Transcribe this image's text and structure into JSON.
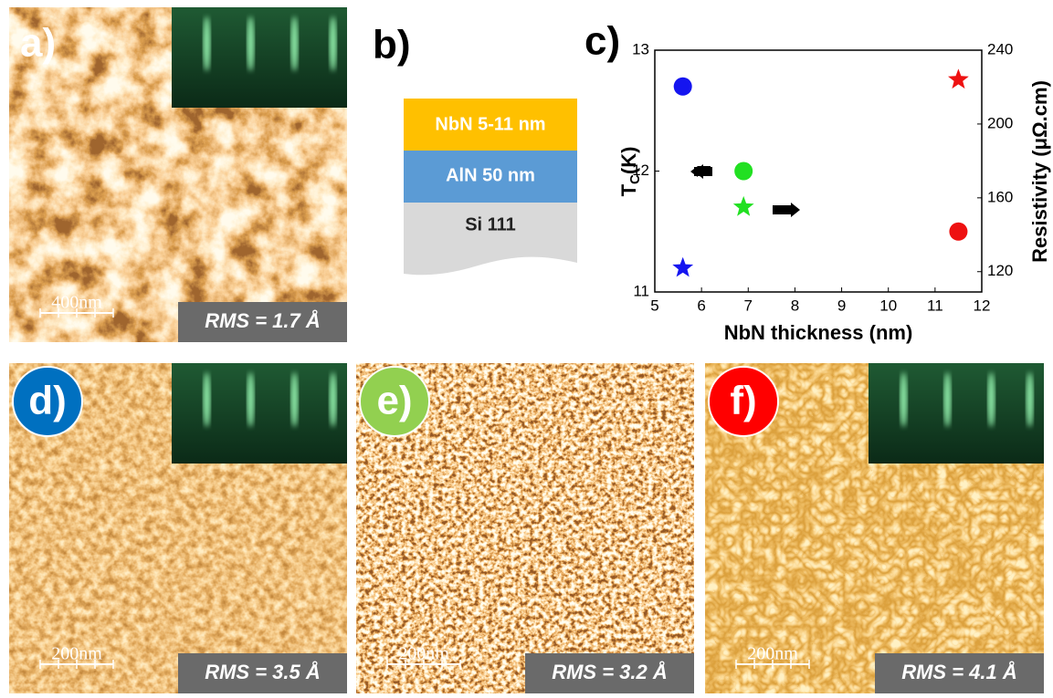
{
  "panels": [
    {
      "label": "a)",
      "scale": "400nm",
      "rms": "RMS = 1.7 Å"
    },
    {
      "label": "d)",
      "scale": "200nm",
      "rms": "RMS = 3.5 Å"
    },
    {
      "label": "e)",
      "scale": "200nm",
      "rms": "RMS = 3.2 Å"
    },
    {
      "label": "f)",
      "scale": "200nm",
      "rms": "RMS = 4.1 Å"
    }
  ],
  "stack": {
    "label": "b)",
    "layers": [
      "NbN 5-11 nm",
      "AlN 50 nm",
      "Si 111"
    ]
  },
  "chart_label": "c)",
  "chart_data": {
    "type": "scatter",
    "xlabel": "NbN thickness (nm)",
    "ylabel": [
      "T",
      "C",
      "(K)"
    ],
    "y2label": "Resistivity (μΩ.cm)",
    "xlim": [
      5,
      12
    ],
    "xticks": [
      5,
      6,
      7,
      8,
      9,
      10,
      11,
      12
    ],
    "ylim": [
      11,
      13
    ],
    "yticks": [
      11,
      12,
      13
    ],
    "y2lim": [
      109,
      240
    ],
    "y2ticks": [
      120,
      160,
      200,
      240
    ],
    "series": [
      {
        "marker": "circle",
        "x": [
          5.6,
          6.9,
          11.5
        ],
        "values": [
          12.7,
          12.0,
          11.5
        ],
        "colors": [
          "#1515f0",
          "#22e022",
          "#ee1111"
        ]
      },
      {
        "marker": "star",
        "axis": "y2",
        "x": [
          5.6,
          6.9,
          11.5
        ],
        "values": [
          122,
          155,
          224
        ],
        "colors": [
          "#1515f0",
          "#22e022",
          "#ee1111"
        ]
      }
    ]
  }
}
